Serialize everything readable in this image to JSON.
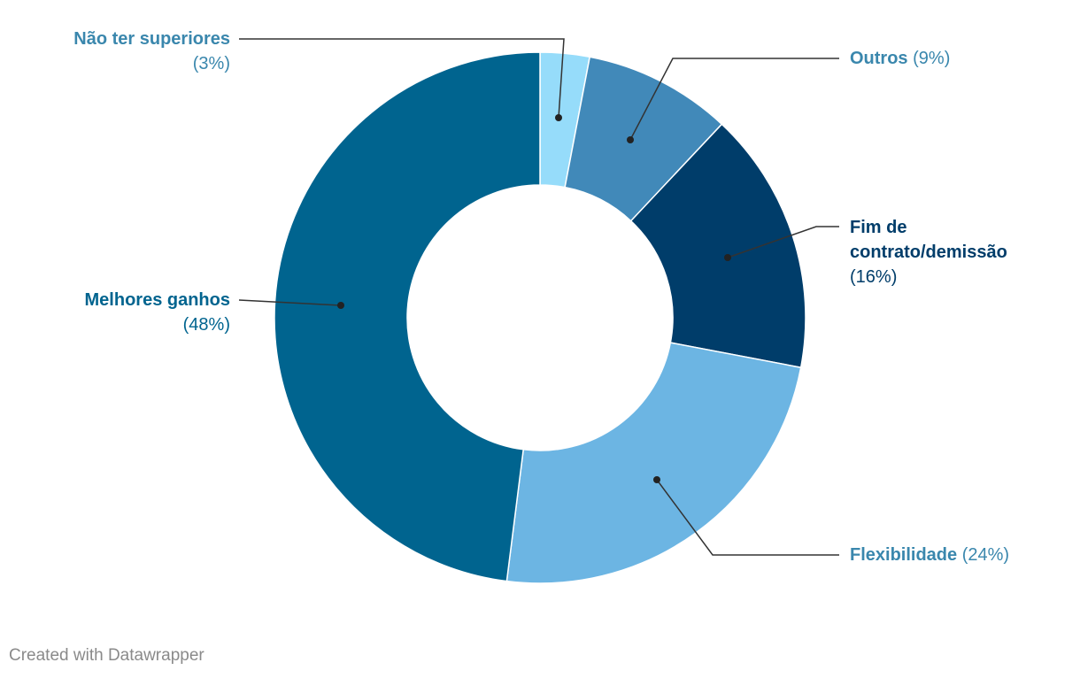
{
  "chart_data": {
    "type": "pie",
    "variant": "donut",
    "slices": [
      {
        "label": "Não ter superiores",
        "value": 3,
        "pct_label": "(3%)",
        "color": "#96dcfa",
        "label_color": "#3a87ad"
      },
      {
        "label": "Outros",
        "value": 9,
        "pct_label": "(9%)",
        "color": "#4189b9",
        "label_color": "#3a87ad"
      },
      {
        "label": "Fim de contrato/demissão",
        "value": 16,
        "pct_label": "(16%)",
        "color": "#003d6a",
        "label_color": "#003d6a"
      },
      {
        "label": "Flexibilidade",
        "value": 24,
        "pct_label": "(24%)",
        "color": "#6cb5e3",
        "label_color": "#3a87ad"
      },
      {
        "label": "Melhores ganhos",
        "value": 48,
        "pct_label": "(48%)",
        "color": "#00648f",
        "label_color": "#00648f"
      }
    ]
  },
  "labels": {
    "nao_ter": {
      "name": "Não ter superiores",
      "pct": "(3%)"
    },
    "outros": {
      "name": "Outros",
      "pct": "(9%)"
    },
    "fim_line1": "Fim de",
    "fim_line2": "contrato/demissão",
    "fim_pct": "(16%)",
    "flex": {
      "name": "Flexibilidade",
      "pct": "(24%)"
    },
    "melhores": {
      "name": "Melhores ganhos",
      "pct": "(48%)"
    }
  },
  "credit": "Created with Datawrapper"
}
